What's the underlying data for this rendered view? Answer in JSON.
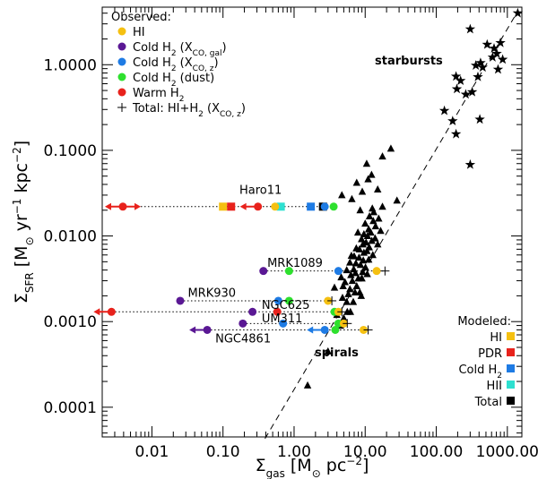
{
  "chart_data": {
    "type": "scatter",
    "x_axis": {
      "label_main": "Σ",
      "label_sub": "gas",
      "label_units": "[M",
      "label_units_sub": "⊙",
      "label_units_end": " pc",
      "label_units_sup": "−2",
      "label_close": "]",
      "scale": "log",
      "range": [
        0.002,
        1600
      ],
      "ticks": [
        0.01,
        0.1,
        1,
        10,
        100,
        1000
      ],
      "tick_labels": [
        "0.01",
        "0.10",
        "1.00",
        "10.00",
        "100.00",
        "1000.00"
      ]
    },
    "y_axis": {
      "label_main": "Σ",
      "label_sub": "SFR",
      "label_units": "[M",
      "label_units_sub": "⊙",
      "label_units_mid": " yr",
      "label_units_sup1": "−1",
      "label_units_mid2": " kpc",
      "label_units_sup2": "−2",
      "label_close": "]",
      "scale": "log",
      "range": [
        4.5e-05,
        4.7
      ],
      "ticks": [
        0.0001,
        0.001,
        0.01,
        0.1,
        1
      ],
      "tick_labels": [
        "0.0001",
        "0.0010",
        "0.0100",
        "0.1000",
        "1.0000"
      ]
    },
    "colors": {
      "HI": "#f5c011",
      "cold_h2_gal": "#5a1894",
      "cold_h2_z": "#1e7be4",
      "cold_h2_dust": "#2ee02e",
      "warm_h2": "#e8221c",
      "PDR": "#e8221c",
      "HII": "#2ee0d0",
      "total": "#000000",
      "arrow_fill": "#e8221c"
    },
    "legend_observed": {
      "title": "Observed:",
      "items": [
        {
          "label": "HI",
          "color": "#f5c011",
          "marker": "circle"
        },
        {
          "label": "Cold H",
          "sub": "2",
          "extra": " (X",
          "extra_sub": "CO, gal",
          "extra_end": ")",
          "color": "#5a1894",
          "marker": "circle"
        },
        {
          "label": "Cold H",
          "sub": "2",
          "extra": " (X",
          "extra_sub": "CO, z",
          "extra_end": ")",
          "color": "#1e7be4",
          "marker": "circle"
        },
        {
          "label": "Cold H",
          "sub": "2",
          "extra": " (dust)",
          "extra_sub": "",
          "extra_end": "",
          "color": "#2ee02e",
          "marker": "circle"
        },
        {
          "label": "Warm H",
          "sub": "2",
          "extra": "",
          "extra_sub": "",
          "extra_end": "",
          "color": "#e8221c",
          "marker": "circle"
        },
        {
          "label": "Total: HI+H",
          "sub": "2",
          "extra": " (X",
          "extra_sub": "CO, z",
          "extra_end": ")",
          "color": "#000000",
          "marker": "plus"
        }
      ]
    },
    "legend_modeled": {
      "title": "Modeled:",
      "items": [
        {
          "label": "HI",
          "color": "#f5c011"
        },
        {
          "label": "PDR",
          "color": "#e8221c"
        },
        {
          "label": "Cold H",
          "sub": "2",
          "color": "#1e7be4"
        },
        {
          "label": "HII",
          "color": "#2ee0d0"
        },
        {
          "label": "Total",
          "color": "#000000"
        }
      ]
    },
    "annotations": {
      "starbursts": "starbursts",
      "spirals": "spirals"
    },
    "dashed_fit_line": [
      [
        0.39,
        4.3e-05
      ],
      [
        1400,
        4.2
      ]
    ],
    "spirals": [
      [
        1.55,
        0.00018
      ],
      [
        3.0,
        0.00045
      ],
      [
        4.5,
        0.0009
      ],
      [
        5.0,
        0.0011
      ],
      [
        4.0,
        0.0012
      ],
      [
        5.6,
        0.0013
      ],
      [
        6.2,
        0.0013
      ],
      [
        5.5,
        0.0017
      ],
      [
        6.8,
        0.0017
      ],
      [
        4.8,
        0.0019
      ],
      [
        5.8,
        0.0021
      ],
      [
        7.2,
        0.0022
      ],
      [
        8.4,
        0.0022
      ],
      [
        6.1,
        0.0024
      ],
      [
        3.7,
        0.0025
      ],
      [
        4.9,
        0.0026
      ],
      [
        7.6,
        0.0026
      ],
      [
        5.2,
        0.0029
      ],
      [
        6.6,
        0.003
      ],
      [
        8.0,
        0.0032
      ],
      [
        9.0,
        0.0032
      ],
      [
        4.6,
        0.0033
      ],
      [
        6.3,
        0.0035
      ],
      [
        7.3,
        0.0037
      ],
      [
        9.2,
        0.0038
      ],
      [
        5.5,
        0.004
      ],
      [
        6.9,
        0.0041
      ],
      [
        10.1,
        0.0043
      ],
      [
        8.6,
        0.0046
      ],
      [
        7.4,
        0.0048
      ],
      [
        6.1,
        0.0049
      ],
      [
        9.4,
        0.0052
      ],
      [
        11.2,
        0.0053
      ],
      [
        8.2,
        0.0056
      ],
      [
        7.0,
        0.0058
      ],
      [
        12.8,
        0.006
      ],
      [
        9.6,
        0.0064
      ],
      [
        10.6,
        0.0067
      ],
      [
        8.3,
        0.007
      ],
      [
        7.5,
        0.0072
      ],
      [
        11.4,
        0.0074
      ],
      [
        9.3,
        0.008
      ],
      [
        15.0,
        0.008
      ],
      [
        10.3,
        0.0084
      ],
      [
        12.4,
        0.0088
      ],
      [
        8.9,
        0.0092
      ],
      [
        13.8,
        0.0094
      ],
      [
        10.8,
        0.01
      ],
      [
        9.6,
        0.0105
      ],
      [
        12.0,
        0.011
      ],
      [
        16.5,
        0.0115
      ],
      [
        11.2,
        0.012
      ],
      [
        14.0,
        0.013
      ],
      [
        10.0,
        0.014
      ],
      [
        13.0,
        0.015
      ],
      [
        15.5,
        0.016
      ],
      [
        11.5,
        0.017
      ],
      [
        13.2,
        0.019
      ],
      [
        8.5,
        0.02
      ],
      [
        12.6,
        0.021
      ],
      [
        17.5,
        0.022
      ],
      [
        6.5,
        0.027
      ],
      [
        4.7,
        0.03
      ],
      [
        9.1,
        0.033
      ],
      [
        15.0,
        0.035
      ],
      [
        28.0,
        0.026
      ],
      [
        7.6,
        0.042
      ],
      [
        11.0,
        0.046
      ],
      [
        12.3,
        0.052
      ],
      [
        10.5,
        0.07
      ],
      [
        23.0,
        0.105
      ],
      [
        17.5,
        0.085
      ],
      [
        8.8,
        0.002
      ],
      [
        10.7,
        0.0036
      ],
      [
        6.4,
        0.0059
      ],
      [
        7.9,
        0.011
      ]
    ],
    "starbursts": [
      [
        130,
        0.29
      ],
      [
        170,
        0.22
      ],
      [
        260,
        0.45
      ],
      [
        195,
        0.52
      ],
      [
        220,
        0.65
      ],
      [
        190,
        0.73
      ],
      [
        320,
        0.48
      ],
      [
        385,
        0.72
      ],
      [
        360,
        0.98
      ],
      [
        420,
        1.05
      ],
      [
        450,
        0.93
      ],
      [
        520,
        1.72
      ],
      [
        650,
        1.55
      ],
      [
        710,
        1.35
      ],
      [
        860,
        1.15
      ],
      [
        740,
        0.88
      ],
      [
        620,
        1.22
      ],
      [
        410,
        0.23
      ],
      [
        190,
        0.155
      ],
      [
        300,
        0.068
      ],
      [
        300,
        2.6
      ],
      [
        1400,
        4.0
      ],
      [
        800,
        1.8
      ]
    ],
    "galaxies": [
      {
        "name": "Haro11",
        "y": 0.022,
        "observed": [
          {
            "type": "warm_h2",
            "x": 0.0039,
            "limit": "both"
          },
          {
            "type": "warm_h2",
            "x": 0.31,
            "limit": "left"
          },
          {
            "type": "HI",
            "x": 0.54
          },
          {
            "type": "cold_h2_z",
            "x": 2.7
          },
          {
            "type": "cold_h2_dust",
            "x": 3.6
          }
        ],
        "modeled": [
          {
            "type": "HI",
            "x": 0.1
          },
          {
            "type": "PDR",
            "x": 0.13
          },
          {
            "type": "HII",
            "x": 0.65
          },
          {
            "type": "cold_h2_z",
            "x": 1.72
          },
          {
            "type": "total",
            "x": 2.55
          }
        ],
        "total_plus": [],
        "label_x": 0.17,
        "label_y": 0.034
      },
      {
        "name": "MRK1089",
        "y": 0.0039,
        "observed": [
          {
            "type": "cold_h2_gal",
            "x": 0.37
          },
          {
            "type": "cold_h2_dust",
            "x": 0.85
          },
          {
            "type": "cold_h2_z",
            "x": 4.2
          },
          {
            "type": "HI",
            "x": 14.5
          }
        ],
        "modeled": [],
        "total_plus": [
          {
            "x": 19.0
          }
        ],
        "label_x": 0.42,
        "label_y": 0.0048
      },
      {
        "name": "MRK930",
        "y": 0.00175,
        "observed": [
          {
            "type": "cold_h2_gal",
            "x": 0.025
          },
          {
            "type": "cold_h2_z",
            "x": 0.6
          },
          {
            "type": "cold_h2_dust",
            "x": 0.85
          },
          {
            "type": "HI",
            "x": 3.0
          }
        ],
        "modeled": [],
        "total_plus": [
          {
            "x": 3.4
          }
        ],
        "label_x": 0.032,
        "label_y": 0.00215
      },
      {
        "name": "NGC625",
        "y": 0.0013,
        "observed": [
          {
            "type": "warm_h2",
            "x": 0.0027,
            "limit": "left"
          },
          {
            "type": "cold_h2_gal",
            "x": 0.26
          },
          {
            "type": "warm_h2",
            "x": 0.58
          },
          {
            "type": "cold_h2_dust",
            "x": 3.7
          },
          {
            "type": "HI",
            "x": 4.2
          }
        ],
        "modeled": [],
        "total_plus": [
          {
            "x": 4.7
          }
        ],
        "label_x": 0.35,
        "label_y": 0.00155
      },
      {
        "name": "UM311",
        "y": 0.00095,
        "observed": [
          {
            "type": "cold_h2_gal",
            "x": 0.19
          },
          {
            "type": "cold_h2_z",
            "x": 0.7
          },
          {
            "type": "cold_h2_dust",
            "x": 4.2
          },
          {
            "type": "HI",
            "x": 5.0
          }
        ],
        "modeled": [],
        "total_plus": [
          {
            "x": 5.6
          }
        ],
        "label_x": 0.35,
        "label_y": 0.00108
      },
      {
        "name": "NGC4861",
        "y": 0.0008,
        "observed": [
          {
            "type": "cold_h2_gal",
            "x": 0.06,
            "limit": "left"
          },
          {
            "type": "cold_h2_z",
            "x": 2.7,
            "limit": "left"
          },
          {
            "type": "cold_h2_dust",
            "x": 3.8
          },
          {
            "type": "HI",
            "x": 9.5
          }
        ],
        "modeled": [],
        "total_plus": [
          {
            "x": 11.0
          }
        ],
        "label_x": 0.078,
        "label_y": 0.00063
      }
    ]
  }
}
